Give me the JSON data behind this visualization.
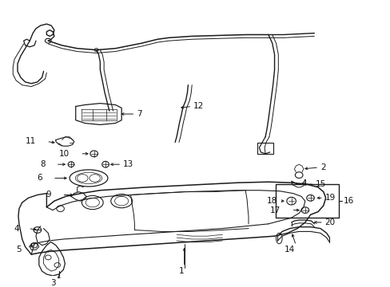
{
  "bg_color": "#ffffff",
  "fig_width": 4.89,
  "fig_height": 3.6,
  "dpi": 100,
  "line_color": "#1a1a1a",
  "label_fontsize": 7.5,
  "label_color": "#111111"
}
